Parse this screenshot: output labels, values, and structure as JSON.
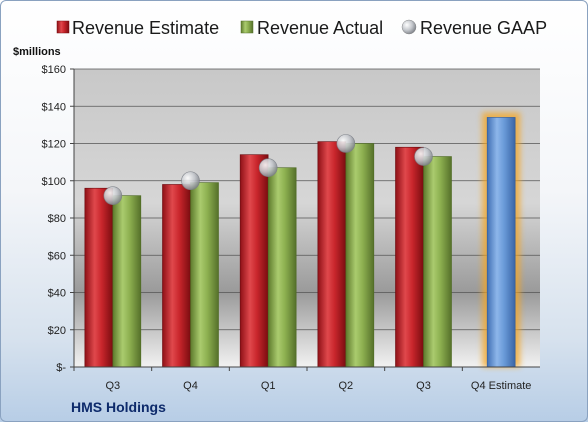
{
  "chart_data": {
    "type": "bar",
    "categories": [
      "Q3",
      "Q4",
      "Q1",
      "Q2",
      "Q3",
      "Q4 Estimate"
    ],
    "series": [
      {
        "name": "Revenue Estimate",
        "type": "bar",
        "color": "#c9262c",
        "values": [
          96,
          98,
          114,
          121,
          118,
          null
        ]
      },
      {
        "name": "Revenue Actual",
        "type": "bar",
        "color": "#8db050",
        "values": [
          92,
          99,
          107,
          120,
          113,
          null
        ]
      },
      {
        "name": "Revenue GAAP",
        "type": "marker",
        "color": "#b8bcc4",
        "values": [
          92,
          100,
          107,
          120,
          113,
          null
        ]
      },
      {
        "name": "",
        "type": "bar",
        "color": "#6a9bd9",
        "highlight": "#f5a623",
        "values": [
          null,
          null,
          null,
          null,
          null,
          134
        ]
      }
    ],
    "ylim": [
      0,
      160
    ],
    "yticks": [
      0,
      20,
      40,
      60,
      80,
      100,
      120,
      140,
      160
    ],
    "ytick_labels": [
      "$-",
      "$20",
      "$40",
      "$60",
      "$80",
      "$100",
      "$120",
      "$140",
      "$160"
    ],
    "ylabel": "$millions",
    "xlabel": "",
    "legend_position": "top",
    "grid": true,
    "company": "HMS Holdings"
  }
}
